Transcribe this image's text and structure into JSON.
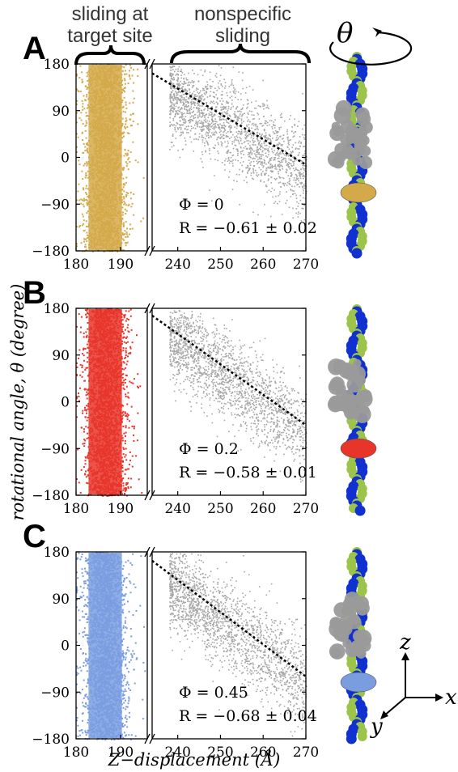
{
  "headers": {
    "target": [
      "sliding at",
      "target site"
    ],
    "nonspecific": [
      "nonspecific",
      "sliding"
    ]
  },
  "axes": {
    "ylabel": "rotational angle, θ (degree)",
    "xlabel": "Z−displacement (Å)",
    "yticks": [
      "180",
      "90",
      "0",
      "−90",
      "−180"
    ],
    "xticks_left": [
      "180",
      "190"
    ],
    "xticks_right": [
      "240",
      "250",
      "260",
      "270"
    ]
  },
  "illustration": {
    "theta_symbol": "θ",
    "axis_z": "z",
    "axis_x": "x",
    "axis_y": "y"
  },
  "colors": {
    "panel_A_target": "#D4A94A",
    "panel_B_target": "#E8352A",
    "panel_C_target": "#7A9DE0",
    "nonspecific": "#A6A6A6",
    "dna_blue": "#1030D0",
    "dna_green": "#9CC34A",
    "protein_gray": "#9A9A9A"
  },
  "chart_data": [
    {
      "panel": "A",
      "type": "scatter",
      "phi_text": "Φ = 0",
      "r_text": "R = −0.61 ± 0.02",
      "target_series": {
        "x_range": [
          180,
          194
        ],
        "x_center": 186.5,
        "y_range": [
          -180,
          180
        ]
      },
      "nonspecific_series": {
        "x_range": [
          240,
          270
        ],
        "fit_line": {
          "x": [
            234,
            270
          ],
          "y": [
            162,
            -14
          ]
        }
      },
      "xlim_left": [
        180,
        196
      ],
      "xlim_right": [
        234,
        270
      ],
      "ylim": [
        -180,
        180
      ]
    },
    {
      "panel": "B",
      "type": "scatter",
      "phi_text": "Φ = 0.2",
      "r_text": "R = −0.58 ± 0.01",
      "target_series": {
        "x_range": [
          180,
          194
        ],
        "x_center": 186.5,
        "y_range": [
          -180,
          180
        ]
      },
      "nonspecific_series": {
        "x_range": [
          240,
          270
        ],
        "fit_line": {
          "x": [
            234,
            270
          ],
          "y": [
            166,
            -45
          ]
        }
      },
      "xlim_left": [
        180,
        196
      ],
      "xlim_right": [
        234,
        270
      ],
      "ylim": [
        -180,
        180
      ]
    },
    {
      "panel": "C",
      "type": "scatter",
      "phi_text": "Φ = 0.45",
      "r_text": "R = −0.68 ± 0.04",
      "target_series": {
        "x_range": [
          180,
          194
        ],
        "x_center": 186.5,
        "y_range": [
          -180,
          180
        ]
      },
      "nonspecific_series": {
        "x_range": [
          240,
          270
        ],
        "fit_line": {
          "x": [
            234,
            270
          ],
          "y": [
            163,
            -60
          ]
        }
      },
      "xlim_left": [
        180,
        196
      ],
      "xlim_right": [
        234,
        270
      ],
      "ylim": [
        -180,
        180
      ]
    }
  ]
}
